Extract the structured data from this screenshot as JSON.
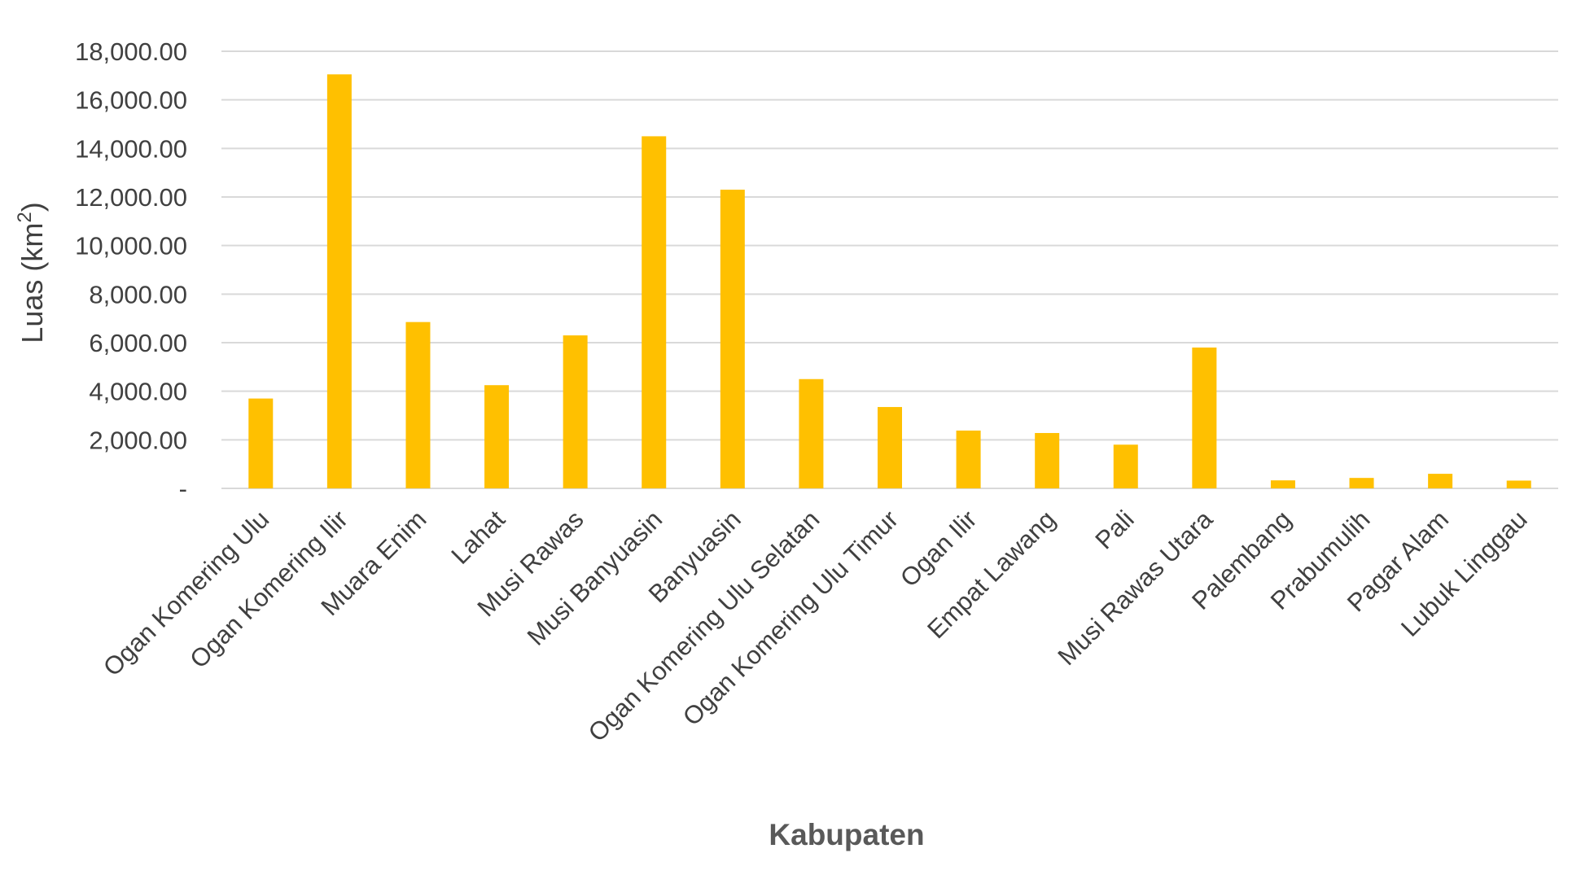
{
  "chart_data": {
    "type": "bar",
    "title": "",
    "xlabel": "Kabupaten",
    "ylabel": "Luas (km",
    "ylabel_superscript": "2",
    "ylabel_suffix": ")",
    "ylim": [
      0,
      18000
    ],
    "yticks": [
      0,
      2000,
      4000,
      6000,
      8000,
      10000,
      12000,
      14000,
      16000,
      18000
    ],
    "ytick_labels": [
      "-",
      "2,000.00",
      "4,000.00",
      "6,000.00",
      "8,000.00",
      "10,000.00",
      "12,000.00",
      "14,000.00",
      "16,000.00",
      "18,000.00"
    ],
    "categories": [
      "Ogan Komering Ulu",
      "Ogan Komering Ilir",
      "Muara Enim",
      "Lahat",
      "Musi Rawas",
      "Musi Banyuasin",
      "Banyuasin",
      "Ogan Komering Ulu Selatan",
      "Ogan Komering Ulu Timur",
      "Ogan Ilir",
      "Empat Lawang",
      "Pali",
      "Musi Rawas Utara",
      "Palembang",
      "Prabumulih",
      "Pagar Alam",
      "Lubuk Linggau"
    ],
    "values": [
      3700,
      17050,
      6850,
      4250,
      6300,
      14500,
      12300,
      4500,
      3350,
      2380,
      2280,
      1800,
      5800,
      330,
      430,
      600,
      320
    ],
    "grid": true,
    "legend": "none",
    "bar_color": "#FFC000",
    "grid_color": "#D9D9D9"
  }
}
